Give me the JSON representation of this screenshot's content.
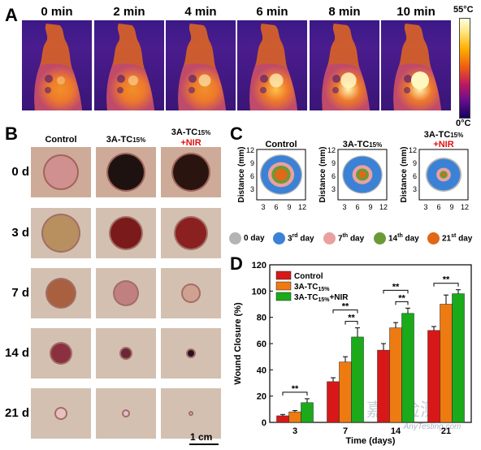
{
  "panels": {
    "a": "A",
    "b": "B",
    "c": "C",
    "d": "D"
  },
  "thermal": {
    "times": [
      "0 min",
      "2 min",
      "4 min",
      "6 min",
      "8 min",
      "10 min"
    ],
    "heat_levels": [
      0.15,
      0.3,
      0.5,
      0.65,
      0.82,
      1.0
    ],
    "colorbar_max": "55°C",
    "colorbar_min": "0°C"
  },
  "photos": {
    "columns": [
      {
        "text": "Control",
        "sub": "",
        "red": ""
      },
      {
        "text": "3A-TC",
        "sub": "15%",
        "red": ""
      },
      {
        "text": "3A-TC",
        "sub": "15%",
        "red": "+NIR"
      }
    ],
    "rows": [
      "0 d",
      "3 d",
      "7 d",
      "14 d",
      "21 d"
    ],
    "scale_bar": "1 cm"
  },
  "traces": {
    "titles": [
      {
        "text": "Control",
        "sub": "",
        "red": ""
      },
      {
        "text": "3A-TC",
        "sub": "15%",
        "red": ""
      },
      {
        "text": "3A-TC",
        "sub": "15%",
        "red": "+NIR"
      }
    ],
    "y_label": "Distance (mm)",
    "x_ticks": [
      "3",
      "6",
      "9",
      "12"
    ],
    "y_ticks": [
      "12",
      "9",
      "6",
      "3"
    ],
    "legend": [
      {
        "label": "0 day",
        "sup": "",
        "color": "#b4b4b4"
      },
      {
        "label": "3",
        "sup": "rd",
        "tail": " day",
        "color": "#3b82d6"
      },
      {
        "label": "7",
        "sup": "th",
        "tail": " day",
        "color": "#eba0a0"
      },
      {
        "label": "14",
        "sup": "th",
        "tail": " day",
        "color": "#6a9a38"
      },
      {
        "label": "21",
        "sup": "st",
        "tail": "  day",
        "color": "#e06818"
      }
    ]
  },
  "chart_data": {
    "type": "bar",
    "xlabel": "Time (days)",
    "ylabel": "Wound Closure (%)",
    "ylim": [
      0,
      120
    ],
    "yticks": [
      0,
      20,
      40,
      60,
      80,
      100,
      120
    ],
    "categories": [
      "3",
      "7",
      "14",
      "21"
    ],
    "series": [
      {
        "name": "Control",
        "name_sub": "",
        "name_tail": "",
        "color": "#d81818",
        "values": [
          5,
          31,
          55,
          70
        ],
        "errors": [
          1,
          3,
          5,
          3
        ]
      },
      {
        "name": "3A-TC",
        "name_sub": "15%",
        "name_tail": "",
        "color": "#ee7a12",
        "values": [
          8,
          46,
          72,
          90
        ],
        "errors": [
          1,
          4,
          4,
          7
        ]
      },
      {
        "name": "3A-TC",
        "name_sub": "15%",
        "name_tail": "+NIR",
        "color": "#1aaa1a",
        "values": [
          15,
          65,
          83,
          98
        ],
        "errors": [
          3,
          7,
          4,
          3
        ]
      }
    ],
    "significance": "**"
  },
  "watermark": {
    "cn": "嘉峪检测网",
    "en": "AnyTesting.com"
  }
}
